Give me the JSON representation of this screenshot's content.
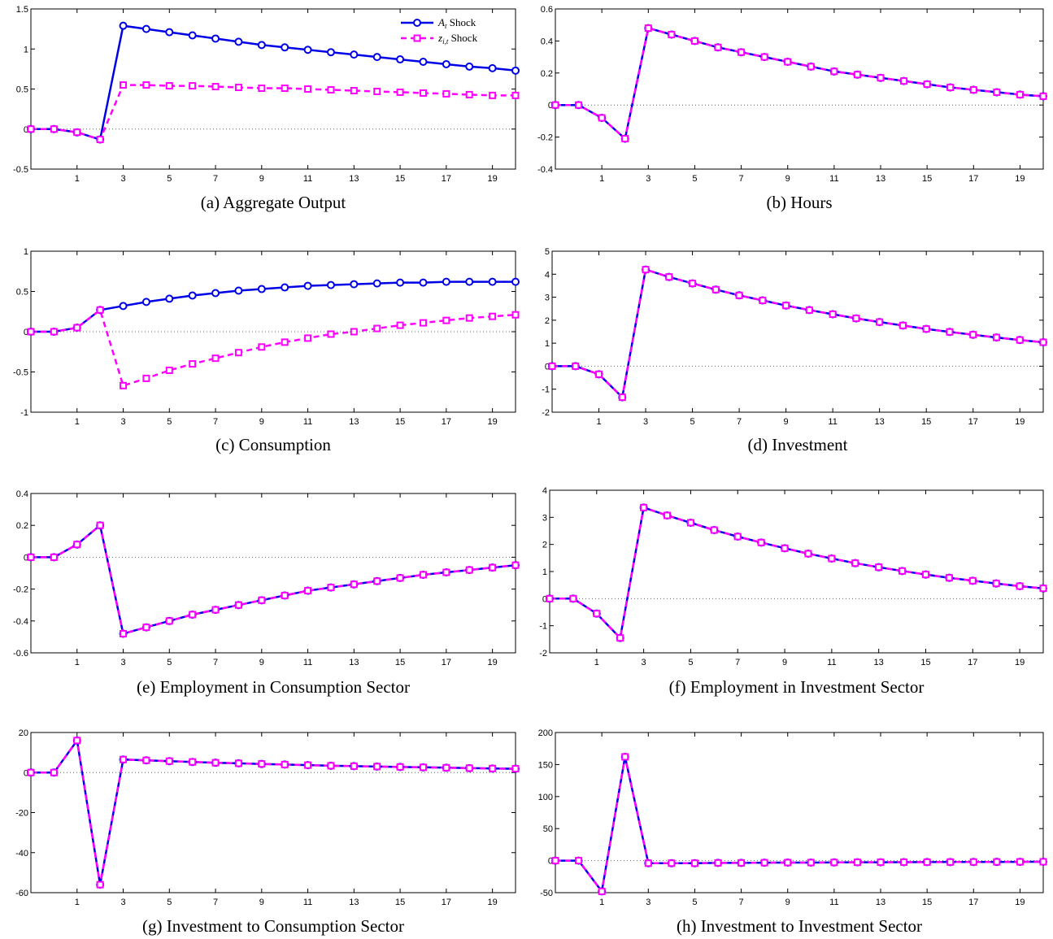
{
  "colors": {
    "A": "#0000e6",
    "Z": "#ff00ff",
    "zero_line": "#666666"
  },
  "legend": {
    "a_sym": "A",
    "a_sub": "t",
    "a_text": "Shock",
    "z_sym": "z",
    "z_sub": "i,t",
    "z_text": "Shock"
  },
  "chart_data": [
    {
      "type": "line",
      "title": "(a) Aggregate Output",
      "xlim": [
        -1,
        20
      ],
      "xticks": [
        1,
        3,
        5,
        7,
        9,
        11,
        13,
        15,
        17,
        19
      ],
      "ylim": [
        -0.5,
        1.5
      ],
      "yticks": [
        -0.5,
        0,
        0.5,
        1,
        1.5
      ],
      "ytick_labels": [
        "-0.5",
        "0",
        "0.5",
        "1",
        "1.5"
      ],
      "x": [
        -1,
        0,
        1,
        2,
        3,
        4,
        5,
        6,
        7,
        8,
        9,
        10,
        11,
        12,
        13,
        14,
        15,
        16,
        17,
        18,
        19,
        20
      ],
      "series": [
        {
          "name": "A_t Shock",
          "style": "solid-circle",
          "values": [
            0,
            0,
            -0.04,
            -0.13,
            1.29,
            1.25,
            1.21,
            1.17,
            1.13,
            1.09,
            1.05,
            1.02,
            0.99,
            0.96,
            0.93,
            0.9,
            0.87,
            0.84,
            0.81,
            0.78,
            0.76,
            0.73
          ]
        },
        {
          "name": "z_i,t Shock",
          "style": "dashed-square",
          "values": [
            0,
            0,
            -0.04,
            -0.13,
            0.55,
            0.55,
            0.54,
            0.54,
            0.53,
            0.52,
            0.51,
            0.51,
            0.5,
            0.49,
            0.48,
            0.47,
            0.46,
            0.45,
            0.44,
            0.43,
            0.42,
            0.42
          ]
        }
      ],
      "legend": true
    },
    {
      "type": "line",
      "title": "(b) Hours",
      "xlim": [
        -1,
        20
      ],
      "xticks": [
        1,
        3,
        5,
        7,
        9,
        11,
        13,
        15,
        17,
        19
      ],
      "ylim": [
        -0.4,
        0.6
      ],
      "yticks": [
        -0.4,
        -0.2,
        0,
        0.2,
        0.4,
        0.6
      ],
      "ytick_labels": [
        "-0.4",
        "-0.2",
        "0",
        "0.2",
        "0.4",
        "0.6"
      ],
      "x": [
        -1,
        0,
        1,
        2,
        3,
        4,
        5,
        6,
        7,
        8,
        9,
        10,
        11,
        12,
        13,
        14,
        15,
        16,
        17,
        18,
        19,
        20
      ],
      "series": [
        {
          "name": "A_t Shock",
          "style": "solid-circle",
          "values": [
            0,
            0,
            -0.08,
            -0.21,
            0.48,
            0.44,
            0.4,
            0.36,
            0.33,
            0.3,
            0.27,
            0.24,
            0.21,
            0.19,
            0.17,
            0.15,
            0.13,
            0.11,
            0.095,
            0.08,
            0.065,
            0.055
          ]
        },
        {
          "name": "z_i,t Shock",
          "style": "dashed-square",
          "values": [
            0,
            0,
            -0.08,
            -0.21,
            0.48,
            0.44,
            0.4,
            0.36,
            0.33,
            0.3,
            0.27,
            0.24,
            0.21,
            0.19,
            0.17,
            0.15,
            0.13,
            0.11,
            0.095,
            0.08,
            0.065,
            0.055
          ]
        }
      ],
      "legend": false
    },
    {
      "type": "line",
      "title": "(c) Consumption",
      "xlim": [
        -1,
        20
      ],
      "xticks": [
        1,
        3,
        5,
        7,
        9,
        11,
        13,
        15,
        17,
        19
      ],
      "ylim": [
        -1,
        1
      ],
      "yticks": [
        -1,
        -0.5,
        0,
        0.5,
        1
      ],
      "ytick_labels": [
        "-1",
        "-0.5",
        "0",
        "0.5",
        "1"
      ],
      "x": [
        -1,
        0,
        1,
        2,
        3,
        4,
        5,
        6,
        7,
        8,
        9,
        10,
        11,
        12,
        13,
        14,
        15,
        16,
        17,
        18,
        19,
        20
      ],
      "series": [
        {
          "name": "A_t Shock",
          "style": "solid-circle",
          "values": [
            0,
            0,
            0.05,
            0.27,
            0.32,
            0.37,
            0.41,
            0.45,
            0.48,
            0.51,
            0.53,
            0.55,
            0.57,
            0.58,
            0.59,
            0.6,
            0.61,
            0.61,
            0.62,
            0.62,
            0.62,
            0.62
          ]
        },
        {
          "name": "z_i,t Shock",
          "style": "dashed-square",
          "values": [
            0,
            0,
            0.05,
            0.27,
            -0.67,
            -0.58,
            -0.48,
            -0.4,
            -0.33,
            -0.26,
            -0.19,
            -0.13,
            -0.08,
            -0.03,
            0.0,
            0.04,
            0.08,
            0.11,
            0.14,
            0.17,
            0.19,
            0.21
          ]
        }
      ],
      "legend": false
    },
    {
      "type": "line",
      "title": "(d) Investment",
      "xlim": [
        -1,
        20
      ],
      "xticks": [
        1,
        3,
        5,
        7,
        9,
        11,
        13,
        15,
        17,
        19
      ],
      "ylim": [
        -2,
        5
      ],
      "yticks": [
        -2,
        -1,
        0,
        1,
        2,
        3,
        4,
        5
      ],
      "ytick_labels": [
        "-2",
        "-1",
        "0",
        "1",
        "2",
        "3",
        "4",
        "5"
      ],
      "x": [
        -1,
        0,
        1,
        2,
        3,
        4,
        5,
        6,
        7,
        8,
        9,
        10,
        11,
        12,
        13,
        14,
        15,
        16,
        17,
        18,
        19,
        20
      ],
      "series": [
        {
          "name": "A_t Shock",
          "style": "solid-circle",
          "values": [
            0,
            0,
            -0.35,
            -1.35,
            4.2,
            3.88,
            3.6,
            3.33,
            3.08,
            2.86,
            2.64,
            2.44,
            2.26,
            2.08,
            1.92,
            1.77,
            1.62,
            1.49,
            1.37,
            1.25,
            1.14,
            1.04
          ]
        },
        {
          "name": "z_i,t Shock",
          "style": "dashed-square",
          "values": [
            0,
            0,
            -0.35,
            -1.35,
            4.2,
            3.88,
            3.6,
            3.33,
            3.08,
            2.86,
            2.64,
            2.44,
            2.26,
            2.08,
            1.92,
            1.77,
            1.62,
            1.49,
            1.37,
            1.25,
            1.14,
            1.04
          ]
        }
      ],
      "legend": false
    },
    {
      "type": "line",
      "title": "(e) Employment in Consumption Sector",
      "xlim": [
        -1,
        20
      ],
      "xticks": [
        1,
        3,
        5,
        7,
        9,
        11,
        13,
        15,
        17,
        19
      ],
      "ylim": [
        -0.6,
        0.4
      ],
      "yticks": [
        -0.6,
        -0.4,
        -0.2,
        0,
        0.2,
        0.4
      ],
      "ytick_labels": [
        "-0.6",
        "-0.4",
        "-0.2",
        "0",
        "0.2",
        "0.4"
      ],
      "x": [
        -1,
        0,
        1,
        2,
        3,
        4,
        5,
        6,
        7,
        8,
        9,
        10,
        11,
        12,
        13,
        14,
        15,
        16,
        17,
        18,
        19,
        20
      ],
      "series": [
        {
          "name": "A_t Shock",
          "style": "solid-circle",
          "values": [
            0,
            0,
            0.08,
            0.2,
            -0.48,
            -0.44,
            -0.4,
            -0.36,
            -0.33,
            -0.3,
            -0.27,
            -0.24,
            -0.21,
            -0.19,
            -0.17,
            -0.15,
            -0.13,
            -0.11,
            -0.095,
            -0.08,
            -0.065,
            -0.05
          ]
        },
        {
          "name": "z_i,t Shock",
          "style": "dashed-square",
          "values": [
            0,
            0,
            0.08,
            0.2,
            -0.48,
            -0.44,
            -0.4,
            -0.36,
            -0.33,
            -0.3,
            -0.27,
            -0.24,
            -0.21,
            -0.19,
            -0.17,
            -0.15,
            -0.13,
            -0.11,
            -0.095,
            -0.08,
            -0.065,
            -0.05
          ]
        }
      ],
      "legend": false
    },
    {
      "type": "line",
      "title": "(f) Employment in Investment Sector",
      "xlim": [
        -1,
        20
      ],
      "xticks": [
        1,
        3,
        5,
        7,
        9,
        11,
        13,
        15,
        17,
        19
      ],
      "ylim": [
        -2,
        4
      ],
      "yticks": [
        -2,
        -1,
        0,
        1,
        2,
        3,
        4
      ],
      "ytick_labels": [
        "-2",
        "-1",
        "0",
        "1",
        "2",
        "3",
        "4"
      ],
      "x": [
        -1,
        0,
        1,
        2,
        3,
        4,
        5,
        6,
        7,
        8,
        9,
        10,
        11,
        12,
        13,
        14,
        15,
        16,
        17,
        18,
        19,
        20
      ],
      "series": [
        {
          "name": "A_t Shock",
          "style": "solid-circle",
          "values": [
            0,
            0,
            -0.55,
            -1.45,
            3.36,
            3.07,
            2.8,
            2.53,
            2.29,
            2.07,
            1.86,
            1.66,
            1.48,
            1.31,
            1.16,
            1.02,
            0.89,
            0.77,
            0.66,
            0.56,
            0.46,
            0.38
          ]
        },
        {
          "name": "z_i,t Shock",
          "style": "dashed-square",
          "values": [
            0,
            0,
            -0.55,
            -1.45,
            3.36,
            3.07,
            2.8,
            2.53,
            2.29,
            2.07,
            1.86,
            1.66,
            1.48,
            1.31,
            1.16,
            1.02,
            0.89,
            0.77,
            0.66,
            0.56,
            0.46,
            0.38
          ]
        }
      ],
      "legend": false
    },
    {
      "type": "line",
      "title": "(g) Investment to Consumption Sector",
      "xlim": [
        -1,
        20
      ],
      "xticks": [
        1,
        3,
        5,
        7,
        9,
        11,
        13,
        15,
        17,
        19
      ],
      "ylim": [
        -60,
        20
      ],
      "yticks": [
        -60,
        -40,
        -20,
        0,
        20
      ],
      "ytick_labels": [
        "-60",
        "-40",
        "-20",
        "0",
        "20"
      ],
      "x": [
        -1,
        0,
        1,
        2,
        3,
        4,
        5,
        6,
        7,
        8,
        9,
        10,
        11,
        12,
        13,
        14,
        15,
        16,
        17,
        18,
        19,
        20
      ],
      "series": [
        {
          "name": "A_t Shock",
          "style": "solid-circle",
          "values": [
            0,
            0,
            16,
            -56,
            6.5,
            6.1,
            5.7,
            5.3,
            4.9,
            4.6,
            4.3,
            4.0,
            3.7,
            3.4,
            3.2,
            3.0,
            2.8,
            2.6,
            2.4,
            2.2,
            2.0,
            1.9
          ]
        },
        {
          "name": "z_i,t Shock",
          "style": "dashed-square",
          "values": [
            0,
            0,
            16,
            -56,
            6.5,
            6.1,
            5.7,
            5.3,
            4.9,
            4.6,
            4.3,
            4.0,
            3.7,
            3.4,
            3.2,
            3.0,
            2.8,
            2.6,
            2.4,
            2.2,
            2.0,
            1.9
          ]
        }
      ],
      "legend": false
    },
    {
      "type": "line",
      "title": "(h) Investment to Investment Sector",
      "xlim": [
        -1,
        20
      ],
      "xticks": [
        1,
        3,
        5,
        7,
        9,
        11,
        13,
        15,
        17,
        19
      ],
      "ylim": [
        -50,
        200
      ],
      "yticks": [
        -50,
        0,
        50,
        100,
        150,
        200
      ],
      "ytick_labels": [
        "-50",
        "0",
        "50",
        "100",
        "150",
        "200"
      ],
      "x": [
        -1,
        0,
        1,
        2,
        3,
        4,
        5,
        6,
        7,
        8,
        9,
        10,
        11,
        12,
        13,
        14,
        15,
        16,
        17,
        18,
        19,
        20
      ],
      "series": [
        {
          "name": "A_t Shock",
          "style": "solid-circle",
          "values": [
            0,
            0,
            -48,
            162,
            -4,
            -4,
            -4,
            -3.5,
            -3.5,
            -3.2,
            -3,
            -3,
            -2.8,
            -2.6,
            -2.5,
            -2.4,
            -2.3,
            -2.2,
            -2.1,
            -2,
            -1.9,
            -1.8
          ]
        },
        {
          "name": "z_i,t Shock",
          "style": "dashed-square",
          "values": [
            0,
            0,
            -48,
            162,
            -4,
            -4,
            -4,
            -3.5,
            -3.5,
            -3.2,
            -3,
            -3,
            -2.8,
            -2.6,
            -2.5,
            -2.4,
            -2.3,
            -2.2,
            -2.1,
            -2,
            -1.9,
            -1.8
          ]
        }
      ],
      "legend": false
    }
  ]
}
